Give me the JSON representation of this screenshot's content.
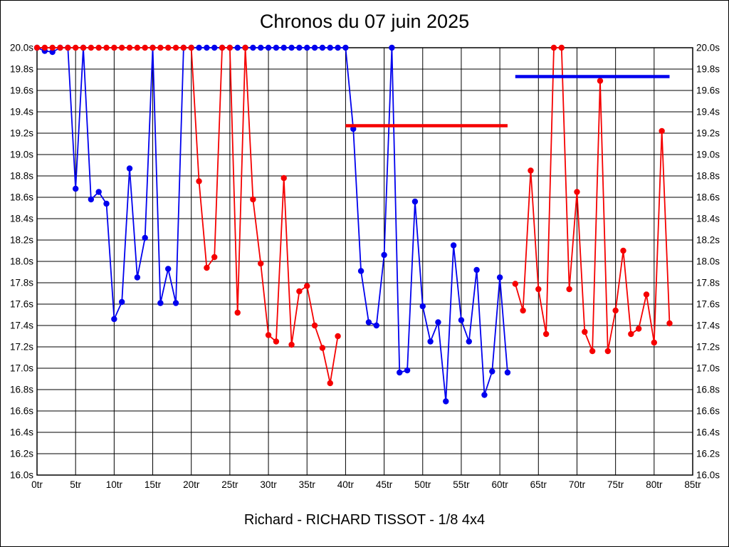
{
  "title": "Chronos du 07 juin 2025",
  "caption": "Richard - RICHARD TISSOT - 1/8 4x4",
  "colors": {
    "blue_series": "#0000ee",
    "red_series": "#f50000",
    "grid": "#000000",
    "background": "#ffffff"
  },
  "chart_data": {
    "type": "line",
    "title": "Chronos du 07 juin 2025",
    "x_unit": "tr",
    "y_unit": "s",
    "xlim": [
      0,
      85
    ],
    "ylim": [
      16.0,
      20.0
    ],
    "grid": true,
    "x_tick_step": 5,
    "y_tick_step": 0.2,
    "x_ticks": [
      "0tr",
      "5tr",
      "10tr",
      "15tr",
      "20tr",
      "25tr",
      "30tr",
      "35tr",
      "40tr",
      "45tr",
      "50tr",
      "55tr",
      "60tr",
      "65tr",
      "70tr",
      "75tr",
      "80tr",
      "85tr"
    ],
    "y_ticks": [
      "20.0s",
      "19.8s",
      "19.6s",
      "19.4s",
      "19.2s",
      "19.0s",
      "18.8s",
      "18.6s",
      "18.4s",
      "18.2s",
      "18.0s",
      "17.8s",
      "17.6s",
      "17.4s",
      "17.2s",
      "17.0s",
      "16.8s",
      "16.6s",
      "16.4s",
      "16.2s",
      "16.0s"
    ],
    "series": [
      {
        "name": "blue-driver-stint-1",
        "color": "#0000ee",
        "points": [
          [
            0,
            20.0
          ],
          [
            1,
            19.97
          ],
          [
            2,
            19.96
          ],
          [
            3,
            20.0
          ],
          [
            4,
            20.0
          ],
          [
            5,
            18.68
          ],
          [
            6,
            20.0
          ],
          [
            7,
            18.58
          ],
          [
            8,
            18.65
          ],
          [
            9,
            18.54
          ],
          [
            10,
            17.46
          ],
          [
            11,
            17.62
          ],
          [
            12,
            18.87
          ],
          [
            13,
            17.85
          ],
          [
            14,
            18.22
          ],
          [
            15,
            20.0
          ],
          [
            16,
            17.61
          ],
          [
            17,
            17.93
          ],
          [
            18,
            17.61
          ],
          [
            19,
            20.0
          ],
          [
            20,
            20.0
          ],
          [
            21,
            20.0
          ],
          [
            22,
            20.0
          ],
          [
            23,
            20.0
          ],
          [
            24,
            20.0
          ],
          [
            25,
            20.0
          ],
          [
            26,
            20.0
          ],
          [
            27,
            20.0
          ],
          [
            28,
            20.0
          ],
          [
            29,
            20.0
          ],
          [
            30,
            20.0
          ],
          [
            31,
            20.0
          ],
          [
            32,
            20.0
          ],
          [
            33,
            20.0
          ],
          [
            34,
            20.0
          ],
          [
            35,
            20.0
          ],
          [
            36,
            20.0
          ],
          [
            37,
            20.0
          ],
          [
            38,
            20.0
          ],
          [
            39,
            20.0
          ],
          [
            40,
            20.0
          ],
          [
            41,
            19.24
          ],
          [
            42,
            17.91
          ],
          [
            43,
            17.43
          ],
          [
            44,
            17.4
          ],
          [
            45,
            18.06
          ],
          [
            46,
            20.0
          ],
          [
            47,
            16.96
          ],
          [
            48,
            16.98
          ],
          [
            49,
            18.56
          ],
          [
            50,
            17.58
          ],
          [
            51,
            17.25
          ],
          [
            52,
            17.43
          ],
          [
            53,
            16.69
          ],
          [
            54,
            18.15
          ],
          [
            55,
            17.45
          ],
          [
            56,
            17.25
          ],
          [
            57,
            17.92
          ],
          [
            58,
            16.75
          ],
          [
            59,
            16.97
          ],
          [
            60,
            17.85
          ],
          [
            61,
            16.96
          ]
        ]
      },
      {
        "name": "red-driver-stint-1",
        "color": "#f50000",
        "points": [
          [
            0,
            20.0
          ],
          [
            1,
            20.0
          ],
          [
            2,
            20.0
          ],
          [
            3,
            20.0
          ],
          [
            4,
            20.0
          ],
          [
            5,
            20.0
          ],
          [
            6,
            20.0
          ],
          [
            7,
            20.0
          ],
          [
            8,
            20.0
          ],
          [
            9,
            20.0
          ],
          [
            10,
            20.0
          ],
          [
            11,
            20.0
          ],
          [
            12,
            20.0
          ],
          [
            13,
            20.0
          ],
          [
            14,
            20.0
          ],
          [
            15,
            20.0
          ],
          [
            16,
            20.0
          ],
          [
            17,
            20.0
          ],
          [
            18,
            20.0
          ],
          [
            19,
            20.0
          ],
          [
            20,
            20.0
          ],
          [
            21,
            18.75
          ],
          [
            22,
            17.94
          ],
          [
            23,
            18.04
          ],
          [
            24,
            20.0
          ],
          [
            25,
            20.0
          ],
          [
            26,
            17.52
          ],
          [
            27,
            20.0
          ],
          [
            28,
            18.58
          ],
          [
            29,
            17.98
          ],
          [
            30,
            17.31
          ],
          [
            31,
            17.25
          ],
          [
            32,
            18.78
          ],
          [
            33,
            17.22
          ],
          [
            34,
            17.72
          ],
          [
            35,
            17.77
          ],
          [
            36,
            17.4
          ],
          [
            37,
            17.19
          ],
          [
            38,
            16.86
          ],
          [
            39,
            17.3
          ]
        ]
      },
      {
        "name": "red-driver-stint-2",
        "color": "#f50000",
        "points": [
          [
            62,
            17.79
          ],
          [
            63,
            17.54
          ],
          [
            64,
            18.85
          ],
          [
            65,
            17.74
          ],
          [
            66,
            17.32
          ],
          [
            67,
            20.0
          ],
          [
            68,
            20.0
          ],
          [
            69,
            17.74
          ],
          [
            70,
            18.65
          ],
          [
            71,
            17.34
          ],
          [
            72,
            17.16
          ],
          [
            73,
            19.69
          ],
          [
            74,
            17.16
          ],
          [
            75,
            17.54
          ],
          [
            76,
            18.1
          ],
          [
            77,
            17.32
          ],
          [
            78,
            17.37
          ],
          [
            79,
            17.69
          ],
          [
            80,
            17.24
          ],
          [
            81,
            19.22
          ],
          [
            82,
            17.42
          ]
        ]
      }
    ],
    "average_lines": [
      {
        "name": "red-stint-average",
        "color": "#f50000",
        "value": 19.27,
        "from_x": 40,
        "to_x": 61
      },
      {
        "name": "blue-stint-average",
        "color": "#0000ee",
        "value": 19.73,
        "from_x": 62,
        "to_x": 82
      }
    ]
  }
}
